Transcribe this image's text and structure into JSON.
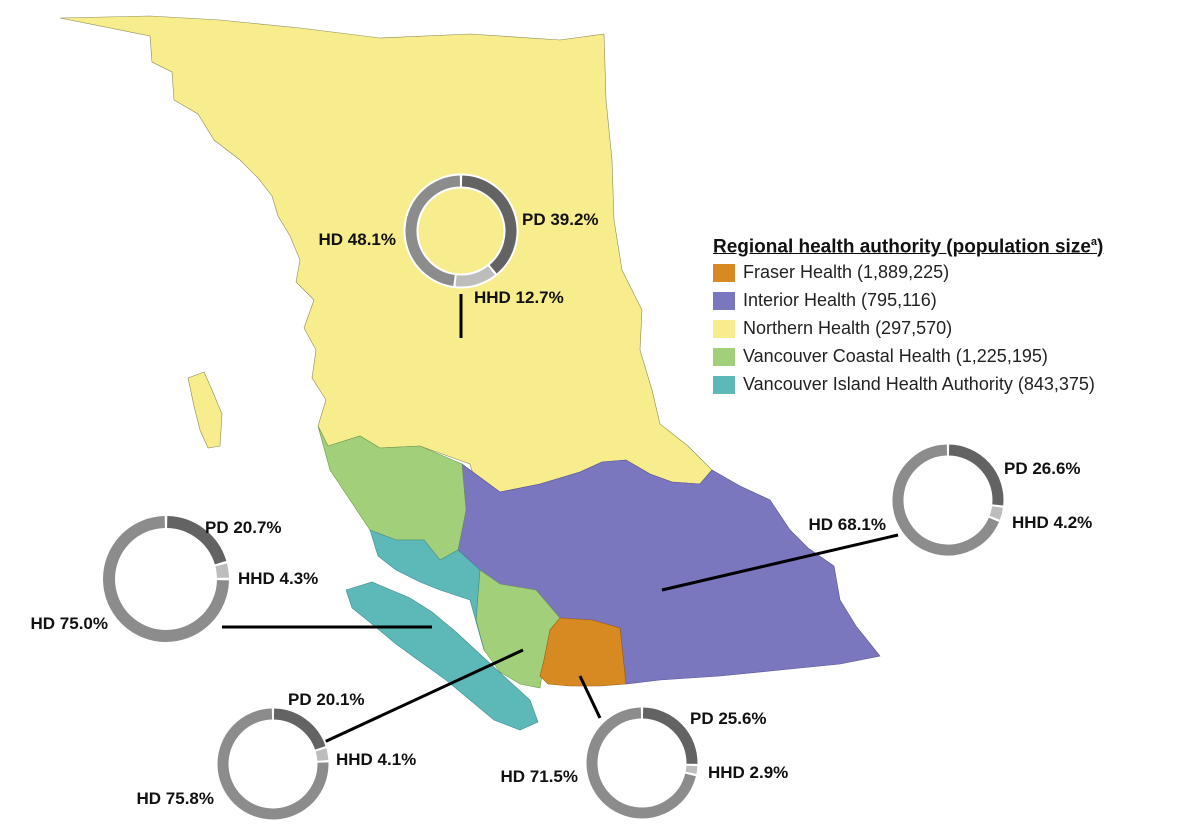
{
  "legend": {
    "title": "Regional health authority (population size",
    "title_sup": "a",
    "title_close": ")",
    "items": [
      {
        "label": "Fraser Health (1,889,225)",
        "color": "#d88a22"
      },
      {
        "label": "Interior Health (795,116)",
        "color": "#7b77bf"
      },
      {
        "label": "Northern Health (297,570)",
        "color": "#f8ed8c"
      },
      {
        "label": "Vancouver Coastal Health (1,225,195)",
        "color": "#a1cf7a"
      },
      {
        "label": "Vancouver Island Health Authority (843,375)",
        "color": "#5db8b8"
      }
    ]
  },
  "regions": {
    "northern": {
      "fill": "#f8ed8c"
    },
    "interior": {
      "fill": "#7b77bf"
    },
    "fraser": {
      "fill": "#d88a22"
    },
    "coastal": {
      "fill": "#a1cf7a"
    },
    "island": {
      "fill": "#5db8b8"
    }
  },
  "chart_data": [
    {
      "type": "pie",
      "region": "Northern Health",
      "slices": [
        {
          "label": "PD 39.2%",
          "value": 39.2,
          "color": "#636363"
        },
        {
          "label": "HHD 12.7%",
          "value": 12.7,
          "color": "#bdbdbd"
        },
        {
          "label": "HD 48.1%",
          "value": 48.1,
          "color": "#8c8c8c"
        }
      ]
    },
    {
      "type": "pie",
      "region": "Interior Health",
      "slices": [
        {
          "label": "PD 26.6%",
          "value": 26.6,
          "color": "#636363"
        },
        {
          "label": "HHD 4.2%",
          "value": 4.2,
          "color": "#bdbdbd"
        },
        {
          "label": "HD 68.1%",
          "value": 68.1,
          "color": "#8c8c8c"
        }
      ]
    },
    {
      "type": "pie",
      "region": "Vancouver Island Health Authority",
      "slices": [
        {
          "label": "PD 20.7%",
          "value": 20.7,
          "color": "#636363"
        },
        {
          "label": "HHD 4.3%",
          "value": 4.3,
          "color": "#bdbdbd"
        },
        {
          "label": "HD 75.0%",
          "value": 75.0,
          "color": "#8c8c8c"
        }
      ]
    },
    {
      "type": "pie",
      "region": "Vancouver Coastal Health",
      "slices": [
        {
          "label": "PD 20.1%",
          "value": 20.1,
          "color": "#636363"
        },
        {
          "label": "HHD 4.1%",
          "value": 4.1,
          "color": "#bdbdbd"
        },
        {
          "label": "HD 75.8%",
          "value": 75.8,
          "color": "#8c8c8c"
        }
      ]
    },
    {
      "type": "pie",
      "region": "Fraser Health",
      "slices": [
        {
          "label": "PD 25.6%",
          "value": 25.6,
          "color": "#636363"
        },
        {
          "label": "HHD 2.9%",
          "value": 2.9,
          "color": "#bdbdbd"
        },
        {
          "label": "HD 71.5%",
          "value": 71.5,
          "color": "#8c8c8c"
        }
      ]
    }
  ]
}
